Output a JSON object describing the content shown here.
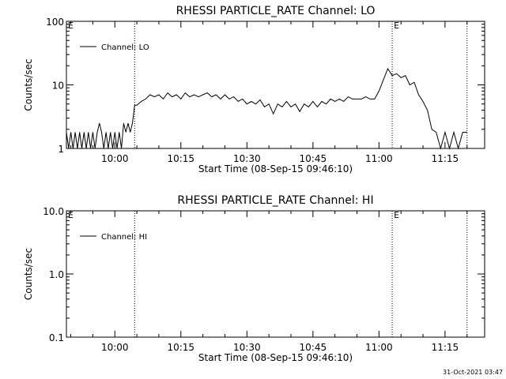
{
  "chart_data": [
    {
      "type": "line",
      "title": "RHESSI PARTICLE_RATE Channel: LO",
      "xlabel": "Start Time (08-Sep-15 09:46:10)",
      "ylabel": "Counts/sec",
      "yscale": "log",
      "ylim": [
        1,
        100
      ],
      "yticks": [
        "1",
        "10",
        "100"
      ],
      "xlim": [
        "09:49:00",
        "11:24:00"
      ],
      "xticks": [
        "10:00",
        "10:15",
        "10:30",
        "10:45",
        "11:00",
        "11:15"
      ],
      "vlines": [
        "10:04:30",
        "11:03:00",
        "11:20:00"
      ],
      "flags": [
        {
          "x": "09:49:00",
          "text": "E"
        },
        {
          "x": "11:03:00",
          "text": "E"
        }
      ],
      "legend": {
        "position": "top-left",
        "entries": [
          "Channel: LO"
        ]
      },
      "series": [
        {
          "name": "Channel: LO",
          "x": [
            "09:49:00",
            "09:49:30",
            "09:50:00",
            "09:50:30",
            "09:51:00",
            "09:51:30",
            "09:52:00",
            "09:52:30",
            "09:53:00",
            "09:53:30",
            "09:54:00",
            "09:54:30",
            "09:55:00",
            "09:55:30",
            "09:56:00",
            "09:56:30",
            "09:57:00",
            "09:57:30",
            "09:58:00",
            "09:58:30",
            "09:59:00",
            "09:59:30",
            "10:00:00",
            "10:00:30",
            "10:01:00",
            "10:01:30",
            "10:02:00",
            "10:02:30",
            "10:03:00",
            "10:03:30",
            "10:04:00",
            "10:04:30",
            "10:05:00",
            "10:06:00",
            "10:07:00",
            "10:08:00",
            "10:09:00",
            "10:10:00",
            "10:11:00",
            "10:12:00",
            "10:13:00",
            "10:14:00",
            "10:15:00",
            "10:16:00",
            "10:17:00",
            "10:18:00",
            "10:19:00",
            "10:20:00",
            "10:21:00",
            "10:22:00",
            "10:23:00",
            "10:24:00",
            "10:25:00",
            "10:26:00",
            "10:27:00",
            "10:28:00",
            "10:29:00",
            "10:30:00",
            "10:31:00",
            "10:32:00",
            "10:33:00",
            "10:34:00",
            "10:35:00",
            "10:36:00",
            "10:37:00",
            "10:38:00",
            "10:39:00",
            "10:40:00",
            "10:41:00",
            "10:42:00",
            "10:43:00",
            "10:44:00",
            "10:45:00",
            "10:46:00",
            "10:47:00",
            "10:48:00",
            "10:49:00",
            "10:50:00",
            "10:51:00",
            "10:52:00",
            "10:53:00",
            "10:54:00",
            "10:55:00",
            "10:56:00",
            "10:57:00",
            "10:58:00",
            "10:59:00",
            "11:00:00",
            "11:01:00",
            "11:02:00",
            "11:03:00",
            "11:04:00",
            "11:05:00",
            "11:06:00",
            "11:07:00",
            "11:08:00",
            "11:09:00",
            "11:10:00",
            "11:11:00",
            "11:12:00",
            "11:13:00",
            "11:14:00",
            "11:15:00",
            "11:16:00",
            "11:17:00",
            "11:18:00",
            "11:19:00",
            "11:20:00"
          ],
          "y": [
            1.8,
            1,
            1.8,
            1,
            1.8,
            1,
            1.8,
            1,
            1.8,
            1,
            1.8,
            1,
            1.8,
            1,
            1.8,
            2.5,
            1.8,
            1,
            1.8,
            1,
            1.8,
            1,
            1.8,
            1,
            1.8,
            1,
            2.5,
            1.8,
            2.5,
            1.8,
            2.5,
            4.8,
            4.8,
            5.5,
            6,
            7,
            6.5,
            7,
            6,
            7.5,
            6.5,
            7,
            6,
            7.5,
            6.5,
            7,
            6.5,
            7,
            7.5,
            6.5,
            7,
            6,
            7,
            6,
            6.5,
            5.5,
            6,
            5,
            5.5,
            5,
            5.8,
            4.5,
            5,
            3.5,
            5,
            4.5,
            5.5,
            4.5,
            5,
            3.8,
            5,
            4.5,
            5.5,
            4.5,
            5.5,
            5,
            6,
            5.5,
            6,
            5.5,
            6.5,
            6,
            6,
            6,
            6.5,
            6,
            6,
            8,
            12,
            18,
            14,
            15,
            13,
            14,
            10,
            11,
            7,
            5.5,
            4,
            2,
            1.8,
            1,
            1.8,
            1,
            1.8,
            1,
            1.8,
            1.8
          ]
        }
      ]
    },
    {
      "type": "line",
      "title": "RHESSI PARTICLE_RATE Channel: HI",
      "xlabel": "Start Time (08-Sep-15 09:46:10)",
      "ylabel": "Counts/sec",
      "yscale": "log",
      "ylim": [
        0.1,
        10
      ],
      "yticks": [
        "0.1",
        "1.0",
        "10.0"
      ],
      "xlim": [
        "09:49:00",
        "11:24:00"
      ],
      "xticks": [
        "10:00",
        "10:15",
        "10:30",
        "10:45",
        "11:00",
        "11:15"
      ],
      "vlines": [
        "10:04:30",
        "11:03:00",
        "11:20:00"
      ],
      "flags": [
        {
          "x": "09:49:00",
          "text": "E"
        },
        {
          "x": "11:03:00",
          "text": "E"
        }
      ],
      "legend": {
        "position": "top-left",
        "entries": [
          "Channel: HI"
        ]
      },
      "series": [
        {
          "name": "Channel: HI",
          "x": [],
          "y": []
        }
      ]
    }
  ],
  "footer": {
    "timestamp": "31-Oct-2021 03:47"
  }
}
